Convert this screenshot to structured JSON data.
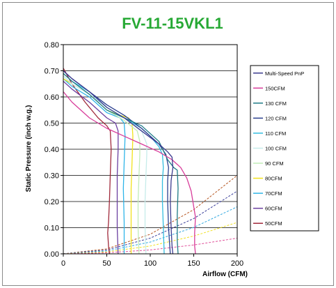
{
  "chart_data": {
    "type": "line",
    "title": "FV-11-15VKL1",
    "xlabel": "Airflow (CFM)",
    "ylabel": "Static Pressure (inch w.g.)",
    "xlim": [
      0,
      200
    ],
    "ylim": [
      0,
      0.8
    ],
    "xticks": [
      "0",
      "50",
      "100",
      "150",
      "200"
    ],
    "yticks": [
      "0.00",
      "0.10",
      "0.20",
      "0.30",
      "0.40",
      "0.50",
      "0.60",
      "0.70",
      "0.80"
    ],
    "grid": "horizontal",
    "legend_position": "right",
    "series": [
      {
        "name": "Multi-Speed PnP",
        "color": "#3b3b8f",
        "style": "solid",
        "points": [
          [
            0,
            0.7
          ],
          [
            10,
            0.67
          ],
          [
            30,
            0.62
          ],
          [
            50,
            0.56
          ],
          [
            70,
            0.52
          ],
          [
            90,
            0.47
          ],
          [
            110,
            0.42
          ],
          [
            120,
            0.39
          ],
          [
            125,
            0.37
          ],
          [
            126,
            0.33
          ],
          [
            124,
            0.28
          ],
          [
            123,
            0.2
          ],
          [
            124,
            0.1
          ],
          [
            125,
            0.03
          ],
          [
            126,
            0
          ]
        ]
      },
      {
        "name": "150CFM",
        "color": "#d83c9a",
        "style": "solid",
        "points": [
          [
            0,
            0.62
          ],
          [
            10,
            0.58
          ],
          [
            30,
            0.52
          ],
          [
            50,
            0.48
          ],
          [
            70,
            0.45
          ],
          [
            90,
            0.42
          ],
          [
            110,
            0.39
          ],
          [
            125,
            0.36
          ],
          [
            135,
            0.33
          ],
          [
            142,
            0.29
          ],
          [
            147,
            0.24
          ],
          [
            150,
            0.18
          ],
          [
            152,
            0.14
          ],
          [
            151,
            0.08
          ],
          [
            151,
            0.03
          ],
          [
            152,
            0
          ]
        ]
      },
      {
        "name": "130 CFM",
        "color": "#1e7b86",
        "style": "solid",
        "points": [
          [
            0,
            0.69
          ],
          [
            10,
            0.66
          ],
          [
            30,
            0.61
          ],
          [
            50,
            0.55
          ],
          [
            70,
            0.52
          ],
          [
            90,
            0.49
          ],
          [
            110,
            0.43
          ],
          [
            120,
            0.36
          ],
          [
            127,
            0.33
          ],
          [
            131,
            0.32
          ],
          [
            132,
            0.25
          ],
          [
            131,
            0.15
          ],
          [
            131,
            0.05
          ],
          [
            132,
            0
          ]
        ]
      },
      {
        "name": "120 CFM",
        "color": "#2a3f8f",
        "style": "solid",
        "points": [
          [
            0,
            0.7
          ],
          [
            10,
            0.67
          ],
          [
            30,
            0.62
          ],
          [
            50,
            0.57
          ],
          [
            70,
            0.53
          ],
          [
            90,
            0.48
          ],
          [
            110,
            0.42
          ],
          [
            118,
            0.38
          ],
          [
            121,
            0.33
          ],
          [
            120,
            0.28
          ],
          [
            120,
            0.2
          ],
          [
            121,
            0.1
          ],
          [
            122,
            0.05
          ],
          [
            123,
            0
          ]
        ]
      },
      {
        "name": "110 CFM",
        "color": "#33bde0",
        "style": "solid",
        "points": [
          [
            0,
            0.69
          ],
          [
            10,
            0.66
          ],
          [
            30,
            0.62
          ],
          [
            50,
            0.56
          ],
          [
            70,
            0.52
          ],
          [
            90,
            0.48
          ],
          [
            100,
            0.45
          ],
          [
            110,
            0.41
          ],
          [
            114,
            0.38
          ],
          [
            115,
            0.33
          ],
          [
            114,
            0.28
          ],
          [
            114,
            0.2
          ],
          [
            115,
            0.1
          ],
          [
            116,
            0
          ]
        ]
      },
      {
        "name": "100 CFM",
        "color": "#c6ecea",
        "style": "solid",
        "points": [
          [
            0,
            0.68
          ],
          [
            10,
            0.65
          ],
          [
            30,
            0.61
          ],
          [
            50,
            0.56
          ],
          [
            70,
            0.52
          ],
          [
            90,
            0.47
          ],
          [
            96,
            0.42
          ],
          [
            96,
            0.38
          ],
          [
            95,
            0.3
          ],
          [
            94,
            0.2
          ],
          [
            94,
            0.1
          ],
          [
            95,
            0
          ]
        ]
      },
      {
        "name": "90 CFM",
        "color": "#c2ecb8",
        "style": "solid",
        "points": [
          [
            0,
            0.68
          ],
          [
            10,
            0.65
          ],
          [
            30,
            0.61
          ],
          [
            50,
            0.55
          ],
          [
            70,
            0.51
          ],
          [
            85,
            0.47
          ],
          [
            88,
            0.43
          ],
          [
            88,
            0.38
          ],
          [
            87,
            0.3
          ],
          [
            86,
            0.2
          ],
          [
            86,
            0.1
          ],
          [
            87,
            0
          ]
        ]
      },
      {
        "name": "80CFM",
        "color": "#f2e21b",
        "style": "solid",
        "points": [
          [
            0,
            0.67
          ],
          [
            10,
            0.65
          ],
          [
            30,
            0.61
          ],
          [
            50,
            0.55
          ],
          [
            65,
            0.53
          ],
          [
            75,
            0.52
          ],
          [
            79,
            0.5
          ],
          [
            80,
            0.45
          ],
          [
            79,
            0.35
          ],
          [
            78,
            0.25
          ],
          [
            78,
            0.12
          ],
          [
            78,
            0
          ]
        ]
      },
      {
        "name": "70CFM",
        "color": "#2fb5e8",
        "style": "solid",
        "points": [
          [
            0,
            0.67
          ],
          [
            10,
            0.64
          ],
          [
            30,
            0.6
          ],
          [
            50,
            0.54
          ],
          [
            65,
            0.52
          ],
          [
            70,
            0.5
          ],
          [
            71,
            0.45
          ],
          [
            70,
            0.35
          ],
          [
            69,
            0.25
          ],
          [
            70,
            0.12
          ],
          [
            70,
            0
          ]
        ]
      },
      {
        "name": "60CFM",
        "color": "#6b3fa0",
        "style": "solid",
        "points": [
          [
            0,
            0.66
          ],
          [
            10,
            0.63
          ],
          [
            30,
            0.58
          ],
          [
            50,
            0.52
          ],
          [
            60,
            0.5
          ],
          [
            63,
            0.47
          ],
          [
            63,
            0.4
          ],
          [
            62,
            0.3
          ],
          [
            62,
            0.2
          ],
          [
            62,
            0.1
          ],
          [
            63,
            0
          ]
        ]
      },
      {
        "name": "50CFM",
        "color": "#a0283a",
        "style": "solid",
        "points": [
          [
            0,
            0.71
          ],
          [
            10,
            0.65
          ],
          [
            25,
            0.58
          ],
          [
            40,
            0.52
          ],
          [
            50,
            0.49
          ],
          [
            54,
            0.47
          ],
          [
            55,
            0.4
          ],
          [
            54,
            0.3
          ],
          [
            53,
            0.2
          ],
          [
            52,
            0.12
          ],
          [
            51,
            0.08
          ],
          [
            52,
            0.03
          ],
          [
            53,
            0
          ]
        ]
      }
    ],
    "system_curves": [
      {
        "color": "#b5541f",
        "points": [
          [
            0,
            0
          ],
          [
            50,
            0.019
          ],
          [
            100,
            0.075
          ],
          [
            150,
            0.169
          ],
          [
            200,
            0.3
          ]
        ]
      },
      {
        "color": "#3a3f9a",
        "points": [
          [
            0,
            0
          ],
          [
            50,
            0.015
          ],
          [
            100,
            0.06
          ],
          [
            150,
            0.135
          ],
          [
            200,
            0.24
          ]
        ]
      },
      {
        "color": "#30a8e0",
        "points": [
          [
            0,
            0
          ],
          [
            50,
            0.011
          ],
          [
            100,
            0.045
          ],
          [
            150,
            0.101
          ],
          [
            200,
            0.18
          ]
        ]
      },
      {
        "color": "#f0e020",
        "points": [
          [
            0,
            0
          ],
          [
            50,
            0.0075
          ],
          [
            100,
            0.03
          ],
          [
            150,
            0.068
          ],
          [
            200,
            0.12
          ]
        ]
      },
      {
        "color": "#e0509a",
        "points": [
          [
            0,
            0
          ],
          [
            50,
            0.004
          ],
          [
            100,
            0.015
          ],
          [
            150,
            0.034
          ],
          [
            200,
            0.06
          ]
        ]
      }
    ]
  }
}
